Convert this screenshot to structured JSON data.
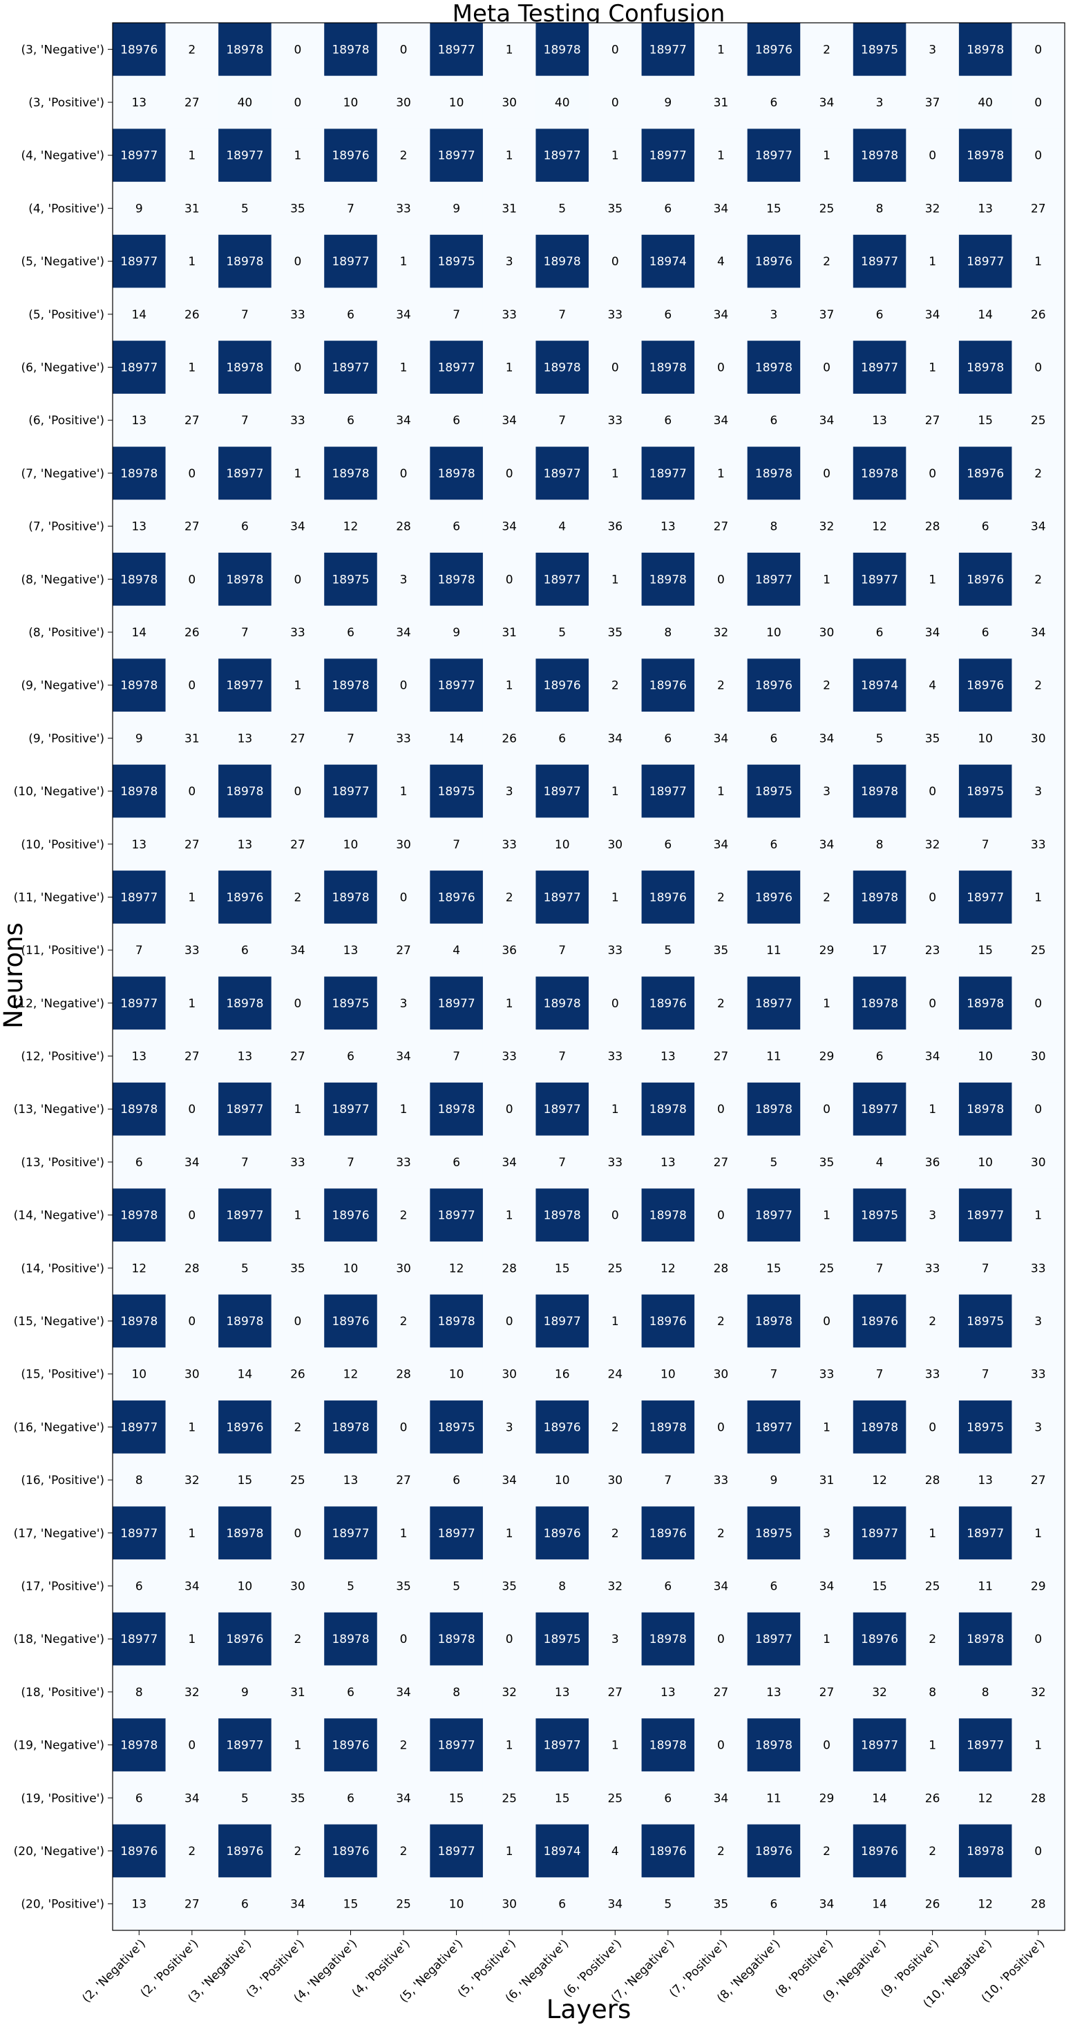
{
  "chart_data": {
    "type": "heatmap",
    "title": "Meta Testing Confusion",
    "xlabel": "Layers",
    "ylabel": "Neurons",
    "x_labels": [
      "(2, 'Negative')",
      "(2, 'Positive')",
      "(3, 'Negative')",
      "(3, 'Positive')",
      "(4, 'Negative')",
      "(4, 'Positive')",
      "(5, 'Negative')",
      "(5, 'Positive')",
      "(6, 'Negative')",
      "(6, 'Positive')",
      "(7, 'Negative')",
      "(7, 'Positive')",
      "(8, 'Negative')",
      "(8, 'Positive')",
      "(9, 'Negative')",
      "(9, 'Positive')",
      "(10, 'Negative')",
      "(10, 'Positive')"
    ],
    "y_labels": [
      "(3, 'Negative')",
      "(3, 'Positive')",
      "(4, 'Negative')",
      "(4, 'Positive')",
      "(5, 'Negative')",
      "(5, 'Positive')",
      "(6, 'Negative')",
      "(6, 'Positive')",
      "(7, 'Negative')",
      "(7, 'Positive')",
      "(8, 'Negative')",
      "(8, 'Positive')",
      "(9, 'Negative')",
      "(9, 'Positive')",
      "(10, 'Negative')",
      "(10, 'Positive')",
      "(11, 'Negative')",
      "(11, 'Positive')",
      "(12, 'Negative')",
      "(12, 'Positive')",
      "(13, 'Negative')",
      "(13, 'Positive')",
      "(14, 'Negative')",
      "(14, 'Positive')",
      "(15, 'Negative')",
      "(15, 'Positive')",
      "(16, 'Negative')",
      "(16, 'Positive')",
      "(17, 'Negative')",
      "(17, 'Positive')",
      "(18, 'Negative')",
      "(18, 'Positive')",
      "(19, 'Negative')",
      "(19, 'Positive')",
      "(20, 'Negative')",
      "(20, 'Positive')"
    ],
    "values": [
      [
        18976,
        2,
        18978,
        0,
        18978,
        0,
        18977,
        1,
        18978,
        0,
        18977,
        1,
        18976,
        2,
        18975,
        3,
        18978,
        0
      ],
      [
        13,
        27,
        40,
        0,
        10,
        30,
        10,
        30,
        40,
        0,
        9,
        31,
        6,
        34,
        3,
        37,
        40,
        0
      ],
      [
        18977,
        1,
        18977,
        1,
        18976,
        2,
        18977,
        1,
        18977,
        1,
        18977,
        1,
        18977,
        1,
        18978,
        0,
        18978,
        0
      ],
      [
        9,
        31,
        5,
        35,
        7,
        33,
        9,
        31,
        5,
        35,
        6,
        34,
        15,
        25,
        8,
        32,
        13,
        27
      ],
      [
        18977,
        1,
        18978,
        0,
        18977,
        1,
        18975,
        3,
        18978,
        0,
        18974,
        4,
        18976,
        2,
        18977,
        1,
        18977,
        1
      ],
      [
        14,
        26,
        7,
        33,
        6,
        34,
        7,
        33,
        7,
        33,
        6,
        34,
        3,
        37,
        6,
        34,
        14,
        26
      ],
      [
        18977,
        1,
        18978,
        0,
        18977,
        1,
        18977,
        1,
        18978,
        0,
        18978,
        0,
        18978,
        0,
        18977,
        1,
        18978,
        0
      ],
      [
        13,
        27,
        7,
        33,
        6,
        34,
        6,
        34,
        7,
        33,
        6,
        34,
        6,
        34,
        13,
        27,
        15,
        25
      ],
      [
        18978,
        0,
        18977,
        1,
        18978,
        0,
        18978,
        0,
        18977,
        1,
        18977,
        1,
        18978,
        0,
        18978,
        0,
        18976,
        2
      ],
      [
        13,
        27,
        6,
        34,
        12,
        28,
        6,
        34,
        4,
        36,
        13,
        27,
        8,
        32,
        12,
        28,
        6,
        34
      ],
      [
        18978,
        0,
        18978,
        0,
        18975,
        3,
        18978,
        0,
        18977,
        1,
        18978,
        0,
        18977,
        1,
        18977,
        1,
        18976,
        2
      ],
      [
        14,
        26,
        7,
        33,
        6,
        34,
        9,
        31,
        5,
        35,
        8,
        32,
        10,
        30,
        6,
        34,
        6,
        34
      ],
      [
        18978,
        0,
        18977,
        1,
        18978,
        0,
        18977,
        1,
        18976,
        2,
        18976,
        2,
        18976,
        2,
        18974,
        4,
        18976,
        2
      ],
      [
        9,
        31,
        13,
        27,
        7,
        33,
        14,
        26,
        6,
        34,
        6,
        34,
        6,
        34,
        5,
        35,
        10,
        30
      ],
      [
        18978,
        0,
        18978,
        0,
        18977,
        1,
        18975,
        3,
        18977,
        1,
        18977,
        1,
        18975,
        3,
        18978,
        0,
        18975,
        3
      ],
      [
        13,
        27,
        13,
        27,
        10,
        30,
        7,
        33,
        10,
        30,
        6,
        34,
        6,
        34,
        8,
        32,
        7,
        33
      ],
      [
        18977,
        1,
        18976,
        2,
        18978,
        0,
        18976,
        2,
        18977,
        1,
        18976,
        2,
        18976,
        2,
        18978,
        0,
        18977,
        1
      ],
      [
        7,
        33,
        6,
        34,
        13,
        27,
        4,
        36,
        7,
        33,
        5,
        35,
        11,
        29,
        17,
        23,
        15,
        25
      ],
      [
        18977,
        1,
        18978,
        0,
        18975,
        3,
        18977,
        1,
        18978,
        0,
        18976,
        2,
        18977,
        1,
        18978,
        0,
        18978,
        0
      ],
      [
        13,
        27,
        13,
        27,
        6,
        34,
        7,
        33,
        7,
        33,
        13,
        27,
        11,
        29,
        6,
        34,
        10,
        30
      ],
      [
        18978,
        0,
        18977,
        1,
        18977,
        1,
        18978,
        0,
        18977,
        1,
        18978,
        0,
        18978,
        0,
        18977,
        1,
        18978,
        0
      ],
      [
        6,
        34,
        7,
        33,
        7,
        33,
        6,
        34,
        7,
        33,
        13,
        27,
        5,
        35,
        4,
        36,
        10,
        30
      ],
      [
        18978,
        0,
        18977,
        1,
        18976,
        2,
        18977,
        1,
        18978,
        0,
        18978,
        0,
        18977,
        1,
        18975,
        3,
        18977,
        1
      ],
      [
        12,
        28,
        5,
        35,
        10,
        30,
        12,
        28,
        15,
        25,
        12,
        28,
        15,
        25,
        7,
        33,
        7,
        33
      ],
      [
        18978,
        0,
        18978,
        0,
        18976,
        2,
        18978,
        0,
        18977,
        1,
        18976,
        2,
        18978,
        0,
        18976,
        2,
        18975,
        3
      ],
      [
        10,
        30,
        14,
        26,
        12,
        28,
        10,
        30,
        16,
        24,
        10,
        30,
        7,
        33,
        7,
        33,
        7,
        33
      ],
      [
        18977,
        1,
        18976,
        2,
        18978,
        0,
        18975,
        3,
        18976,
        2,
        18978,
        0,
        18977,
        1,
        18978,
        0,
        18975,
        3
      ],
      [
        8,
        32,
        15,
        25,
        13,
        27,
        6,
        34,
        10,
        30,
        7,
        33,
        9,
        31,
        12,
        28,
        13,
        27
      ],
      [
        18977,
        1,
        18978,
        0,
        18977,
        1,
        18977,
        1,
        18976,
        2,
        18976,
        2,
        18975,
        3,
        18977,
        1,
        18977,
        1
      ],
      [
        6,
        34,
        10,
        30,
        5,
        35,
        5,
        35,
        8,
        32,
        6,
        34,
        6,
        34,
        15,
        25,
        11,
        29
      ],
      [
        18977,
        1,
        18976,
        2,
        18978,
        0,
        18978,
        0,
        18975,
        3,
        18978,
        0,
        18977,
        1,
        18976,
        2,
        18978,
        0
      ],
      [
        8,
        32,
        9,
        31,
        6,
        34,
        8,
        32,
        13,
        27,
        13,
        27,
        13,
        27,
        32,
        8,
        8,
        32
      ],
      [
        18978,
        0,
        18977,
        1,
        18976,
        2,
        18977,
        1,
        18977,
        1,
        18978,
        0,
        18978,
        0,
        18977,
        1,
        18977,
        1
      ],
      [
        6,
        34,
        5,
        35,
        6,
        34,
        15,
        25,
        15,
        25,
        6,
        34,
        11,
        29,
        14,
        26,
        12,
        28
      ],
      [
        18976,
        2,
        18976,
        2,
        18976,
        2,
        18977,
        1,
        18974,
        4,
        18976,
        2,
        18976,
        2,
        18976,
        2,
        18978,
        0
      ],
      [
        13,
        27,
        6,
        34,
        15,
        25,
        10,
        30,
        6,
        34,
        5,
        35,
        6,
        34,
        14,
        26,
        12,
        28
      ]
    ],
    "colormap": "Blues",
    "high_color": "#08306b",
    "low_color": "#f7fbff",
    "high_text_color": "#ffffff",
    "low_text_color": "#000000",
    "grid": false
  }
}
